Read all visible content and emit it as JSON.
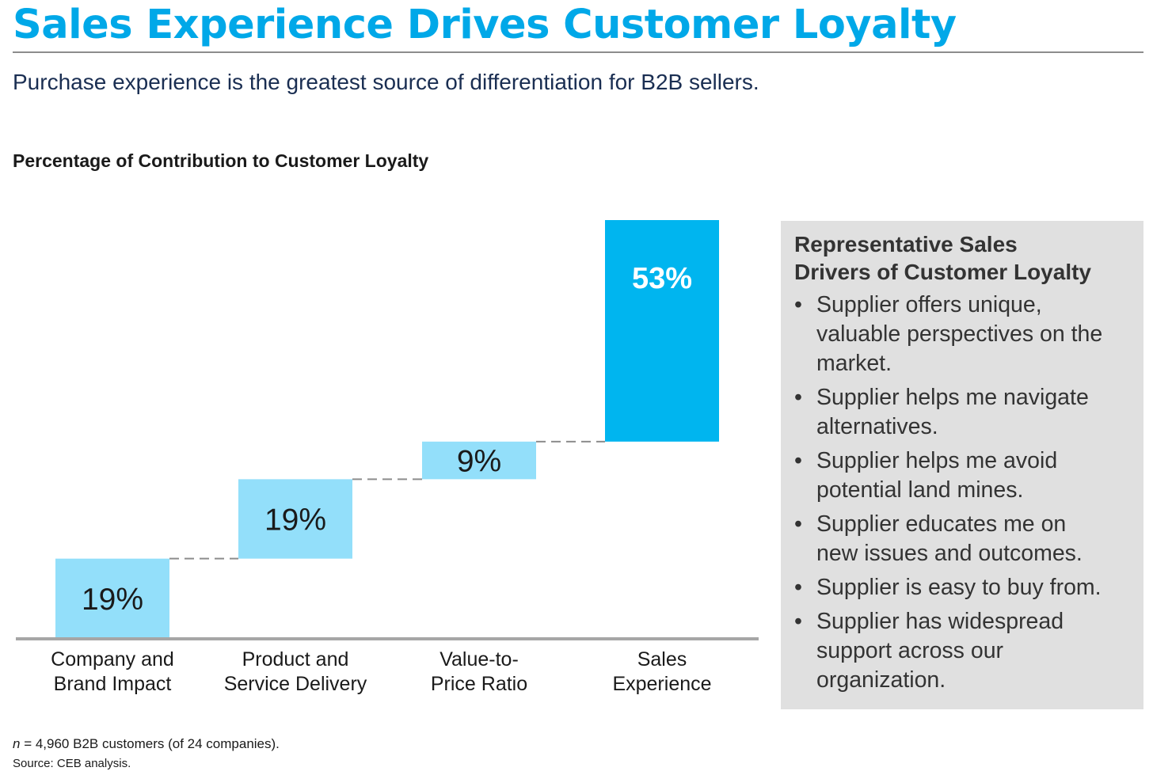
{
  "header": {
    "title": "Sales Experience Drives Customer Loyalty",
    "subtitle": "Purchase experience is the greatest source of differentiation for B2B sellers."
  },
  "chart_data": {
    "type": "bar",
    "subtype": "waterfall",
    "title": "Percentage of Contribution to Customer Loyalty",
    "categories": [
      [
        "Company and",
        "Brand Impact"
      ],
      [
        "Product and",
        "Service Delivery"
      ],
      [
        "Value-to-",
        "Price Ratio"
      ],
      [
        "Sales",
        "Experience"
      ]
    ],
    "values": [
      19,
      19,
      9,
      53
    ],
    "value_labels": [
      "19%",
      "19%",
      "9%",
      "53%"
    ],
    "ylim": [
      0,
      100
    ],
    "connectors": "dashed",
    "colors": [
      "#93dffa",
      "#93dffa",
      "#93dffa",
      "#00b5ef"
    ],
    "label_colors": [
      "#1a1a1a",
      "#1a1a1a",
      "#1a1a1a",
      "#ffffff"
    ]
  },
  "drivers": {
    "heading": [
      "Representative Sales",
      "Drivers of Customer Loyalty"
    ],
    "bullet_glyph": "•",
    "items": [
      [
        "Supplier offers unique,",
        "valuable perspectives on the",
        "market."
      ],
      [
        "Supplier helps me navigate",
        "alternatives."
      ],
      [
        "Supplier helps me avoid",
        "potential land mines."
      ],
      [
        "Supplier educates me on",
        "new issues and outcomes."
      ],
      [
        "Supplier is easy to buy from."
      ],
      [
        "Supplier has widespread",
        "support across our",
        "organization."
      ]
    ]
  },
  "footnote": {
    "n_symbol": "n",
    "text": " = 4,960 B2B customers (of 24 companies).",
    "source": "Source: CEB analysis."
  },
  "colors": {
    "title": "#00a8e8",
    "subtitle": "#1a2e52",
    "axis": "#a6a6a6",
    "panel": "#e0e0e0"
  }
}
